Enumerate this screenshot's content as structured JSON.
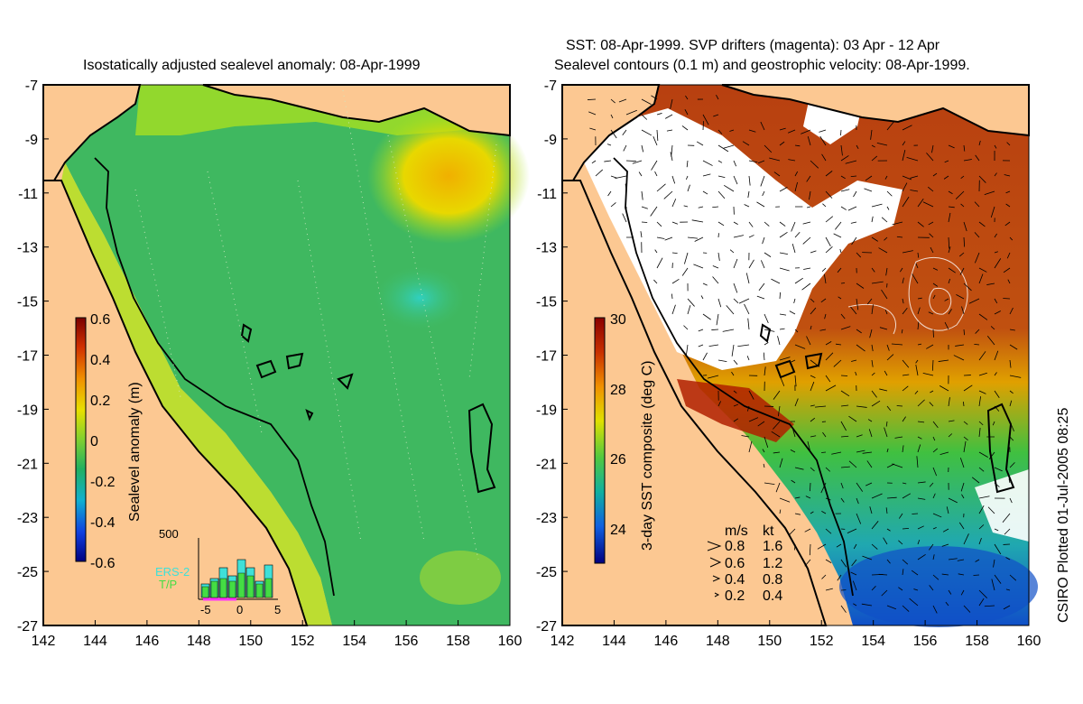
{
  "left_panel": {
    "title": "Isostatically adjusted sealevel anomaly: 08-Apr-1999",
    "colorbar": {
      "label": "Sealevel anomaly (m)",
      "ticks": [
        "0.6",
        "0.4",
        "0.2",
        "0",
        "-0.2",
        "-0.4",
        "-0.6"
      ],
      "min": -0.6,
      "max": 0.6
    },
    "histogram": {
      "ymax_label": "500",
      "x_ticks": [
        "-5",
        "0",
        "5"
      ],
      "legend": [
        "ERS-2",
        "T/P"
      ],
      "ers2_color": "#3fe0d8",
      "tp_color": "#44dd44",
      "bars_ers2": [
        0.25,
        0.35,
        0.55,
        0.4,
        0.7,
        0.55,
        0.3,
        0.6
      ],
      "bars_tp": [
        0.2,
        0.3,
        0.35,
        0.3,
        0.45,
        0.4,
        0.25,
        0.35
      ]
    }
  },
  "right_panel": {
    "title_line1": "SST: 08-Apr-1999. SVP drifters (magenta): 03 Apr - 12 Apr",
    "title_line2": "Sealevel contours (0.1 m) and geostrophic velocity: 08-Apr-1999.",
    "colorbar": {
      "label": "3-day SST composite (deg C)",
      "ticks": [
        "30",
        "28",
        "26",
        "24"
      ],
      "min": 23,
      "max": 30
    },
    "velocity_legend": {
      "header": [
        "m/s",
        "kt"
      ],
      "rows": [
        [
          "0.8",
          "1.6"
        ],
        [
          "0.6",
          "1.2"
        ],
        [
          "0.4",
          "0.8"
        ],
        [
          "0.2",
          "0.4"
        ]
      ]
    }
  },
  "axes": {
    "lon_ticks": [
      "142",
      "144",
      "146",
      "148",
      "150",
      "152",
      "154",
      "156",
      "158",
      "160"
    ],
    "lat_ticks": [
      "-7",
      "-9",
      "-11",
      "-13",
      "-15",
      "-17",
      "-19",
      "-21",
      "-23",
      "-25",
      "-27"
    ],
    "lon_range": [
      142,
      160
    ],
    "lat_range": [
      -27,
      -7
    ]
  },
  "credit": "CSIRO Plotted 01-Jul-2005 08:25",
  "colors": {
    "land": "#fcc892",
    "ocean_mid": "#3fb860",
    "sst_warm": "#b8400e",
    "cloud": "#ffffff"
  }
}
